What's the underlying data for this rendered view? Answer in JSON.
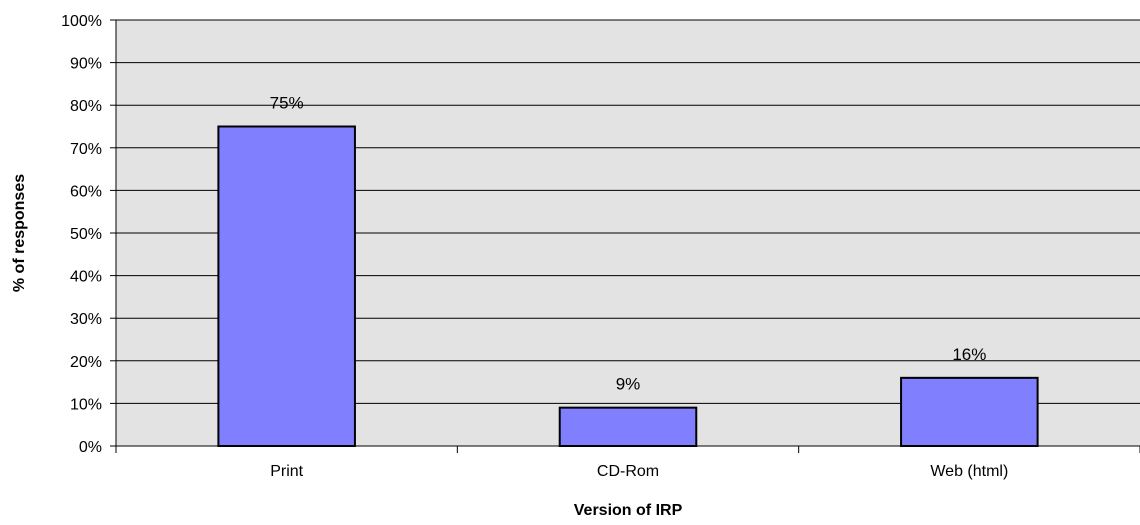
{
  "chart_data": {
    "type": "bar",
    "categories": [
      "Print",
      "CD-Rom",
      "Web (html)"
    ],
    "values": [
      75,
      9,
      16
    ],
    "value_labels": [
      "75%",
      "9%",
      "16%"
    ],
    "xlabel": "Version of IRP",
    "ylabel": "% of responses",
    "ylim": [
      0,
      100
    ],
    "yticks": [
      "0%",
      "10%",
      "20%",
      "30%",
      "40%",
      "50%",
      "60%",
      "70%",
      "80%",
      "90%",
      "100%"
    ],
    "grid": true,
    "colors": {
      "bar": "#8080ff",
      "plot_bg": "#e3e3e3",
      "grid": "#000000"
    }
  }
}
